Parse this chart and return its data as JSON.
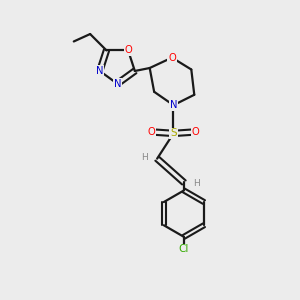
{
  "bg_color": "#ececec",
  "bond_color": "#1a1a1a",
  "colors": {
    "N": "#0000cc",
    "O": "#ff0000",
    "S": "#aaaa00",
    "Cl": "#33aa00",
    "C": "#1a1a1a",
    "H": "#888888"
  }
}
